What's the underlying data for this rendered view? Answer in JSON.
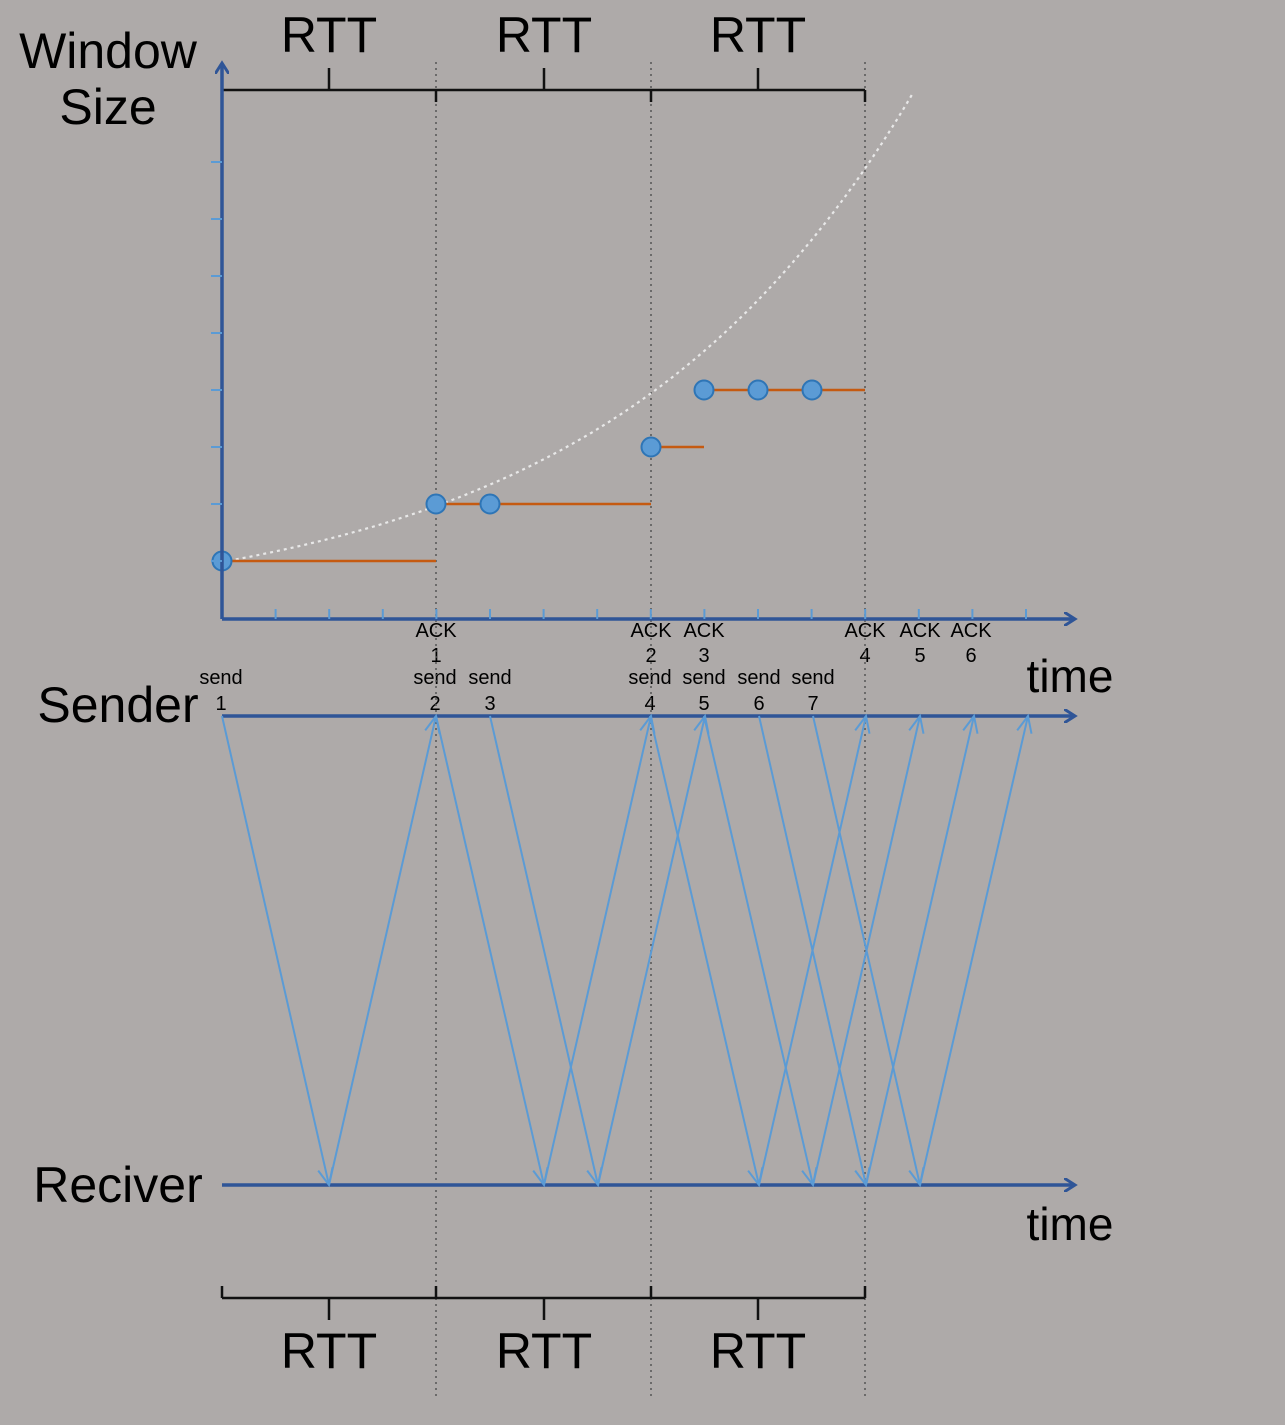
{
  "labels": {
    "window_size_line1": "Window",
    "window_size_line2": "Size",
    "sender": "Sender",
    "receiver": "Reciver",
    "time_top": "time",
    "time_bottom": "time"
  },
  "rtt_labels_top": [
    "RTT",
    "RTT",
    "RTT"
  ],
  "rtt_labels_bottom": [
    "RTT",
    "RTT",
    "RTT"
  ],
  "ack_events": [
    {
      "word": "ACK",
      "num": "1"
    },
    {
      "word": "ACK",
      "num": "2"
    },
    {
      "word": "ACK",
      "num": "3"
    },
    {
      "word": "ACK",
      "num": "4"
    },
    {
      "word": "ACK",
      "num": "5"
    },
    {
      "word": "ACK",
      "num": "6"
    }
  ],
  "send_events": [
    {
      "word": "send",
      "num": "1"
    },
    {
      "word": "send",
      "num": "2"
    },
    {
      "word": "send",
      "num": "3"
    },
    {
      "word": "send",
      "num": "4"
    },
    {
      "word": "send",
      "num": "5"
    },
    {
      "word": "send",
      "num": "6"
    },
    {
      "word": "send",
      "num": "7"
    }
  ],
  "colors": {
    "background": "#aeaaa9",
    "axis": "#2f5597",
    "arrow": "#5b9bd5",
    "step_line": "#c55a11",
    "dot_fill": "#5b9bd5",
    "dot_stroke": "#2e75b6",
    "curve": "#e8e8e8",
    "dotted_divider": "#555555"
  },
  "chart_data": {
    "type": "line",
    "window_size_steps": [
      {
        "segment": 1,
        "window": 1
      },
      {
        "segment": 2,
        "window": 2
      },
      {
        "segment": 3,
        "window": 3
      },
      {
        "segment": 4,
        "window": 4
      }
    ],
    "grid": false,
    "y_scale": "exponential trend curve"
  }
}
